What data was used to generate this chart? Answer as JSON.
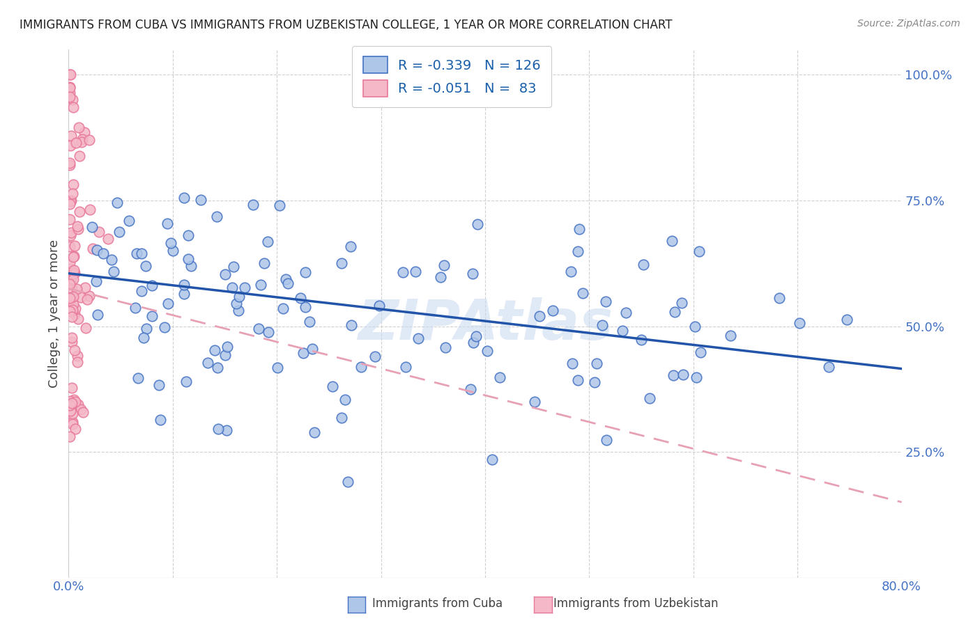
{
  "title": "IMMIGRANTS FROM CUBA VS IMMIGRANTS FROM UZBEKISTAN COLLEGE, 1 YEAR OR MORE CORRELATION CHART",
  "source": "Source: ZipAtlas.com",
  "ylabel": "College, 1 year or more",
  "xlim": [
    0.0,
    0.8
  ],
  "ylim": [
    0.0,
    1.05
  ],
  "cuba_color": "#aec6e8",
  "uzbek_color": "#f4b8c8",
  "cuba_edge_color": "#4472C4",
  "uzbek_edge_color": "#e8789a",
  "cuba_line_color": "#2255aa",
  "uzbek_line_color": "#e8a0b4",
  "cuba_R": -0.339,
  "cuba_N": 126,
  "uzbek_R": -0.051,
  "uzbek_N": 83,
  "legend_label_cuba": "Immigrants from Cuba",
  "legend_label_uzbek": "Immigrants from Uzbekistan",
  "watermark": "ZIPAtlas",
  "tick_color": "#4472C4",
  "grid_color": "#d0d0d0",
  "title_color": "#222222",
  "source_color": "#888888"
}
